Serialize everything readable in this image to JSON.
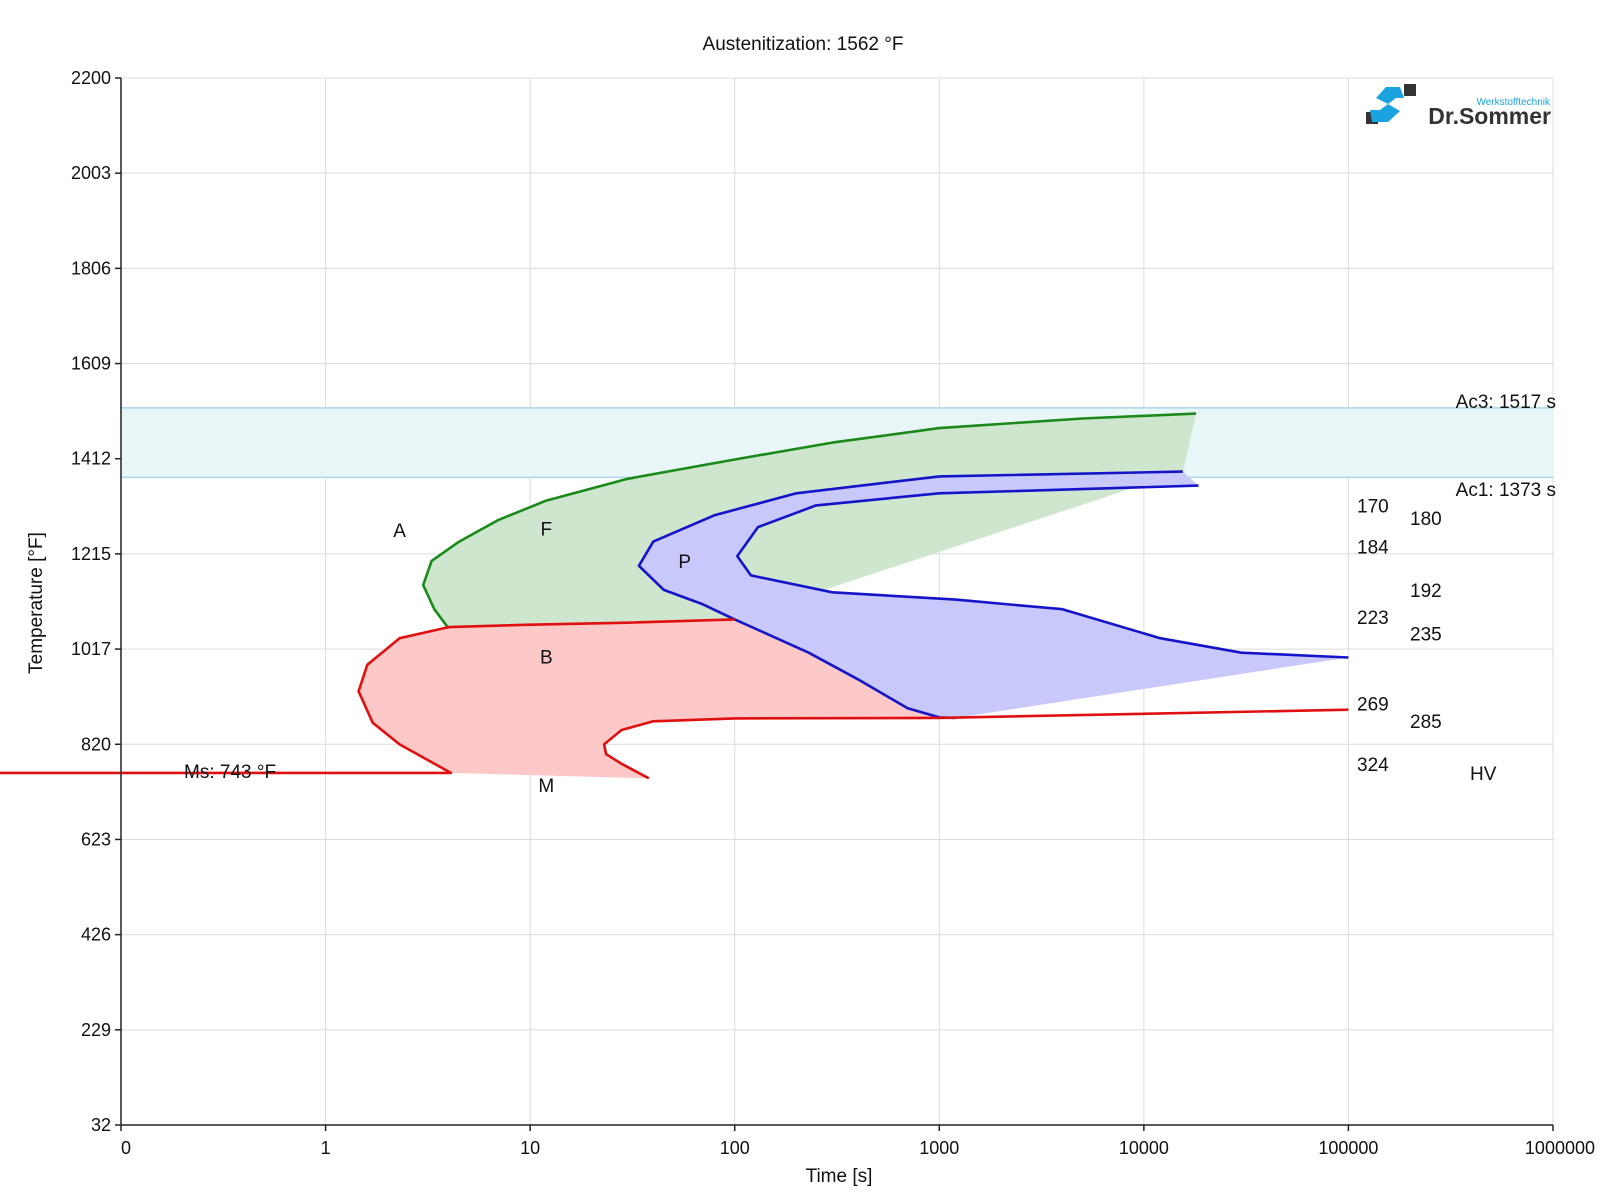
{
  "chart_data": {
    "type": "line",
    "title": "Austenitization: 1562 °F",
    "xlabel": "Time [s]",
    "ylabel": "Temperature [°F]",
    "x_ticks": [
      "0",
      "1",
      "10",
      "100",
      "1000",
      "10000",
      "100000",
      "1000000"
    ],
    "y_ticks": [
      "2200",
      "2003",
      "1806",
      "1609",
      "1412",
      "1215",
      "1017",
      "820",
      "623",
      "426",
      "229",
      "32"
    ],
    "ylim": [
      32,
      2200
    ],
    "x_scale": "log",
    "grid": true,
    "ac_band": {
      "ac3_label": "Ac3: 1517 s",
      "ac1_label": "Ac1: 1373 s",
      "ac3": 1517,
      "ac1": 1373,
      "color": "#e9f6f8"
    },
    "ms_label": "Ms: 743 °F",
    "ms": 743,
    "regions": [
      {
        "label": "A",
        "time": 2.3,
        "temp": 1250
      },
      {
        "label": "F",
        "time": 12,
        "temp": 1253
      },
      {
        "label": "P",
        "time": 57,
        "temp": 1185
      },
      {
        "label": "B",
        "time": 12,
        "temp": 988
      },
      {
        "label": "M",
        "time": 12,
        "temp": 722
      }
    ],
    "hardness_unit": "HV",
    "hardness_values": [
      {
        "label": "170",
        "col": 1,
        "temp": 1300
      },
      {
        "label": "180",
        "col": 2,
        "temp": 1274
      },
      {
        "label": "184",
        "col": 1,
        "temp": 1215
      },
      {
        "label": "192",
        "col": 2,
        "temp": 1125
      },
      {
        "label": "223",
        "col": 1,
        "temp": 1069
      },
      {
        "label": "235",
        "col": 2,
        "temp": 1035
      },
      {
        "label": "269",
        "col": 1,
        "temp": 890
      },
      {
        "label": "285",
        "col": 2,
        "temp": 854
      },
      {
        "label": "324",
        "col": 1,
        "temp": 765
      }
    ],
    "curves": {
      "ferrite": {
        "color": "#1b8a1b",
        "fill": "#cde6cd",
        "points": [
          [
            4.0,
            1060
          ],
          [
            3.4,
            1100
          ],
          [
            3.0,
            1150
          ],
          [
            3.3,
            1200
          ],
          [
            4.5,
            1240
          ],
          [
            7,
            1285
          ],
          [
            12,
            1325
          ],
          [
            30,
            1370
          ],
          [
            100,
            1410
          ],
          [
            300,
            1445
          ],
          [
            1000,
            1475
          ],
          [
            5000,
            1495
          ],
          [
            18000,
            1505
          ]
        ],
        "fill_close": [
          [
            15500,
            1385
          ],
          [
            100,
            1079
          ]
        ]
      },
      "pearlite_start": {
        "color": "#1414c8",
        "points": [
          [
            15500,
            1385
          ],
          [
            1000,
            1375
          ],
          [
            200,
            1340
          ],
          [
            80,
            1295
          ],
          [
            40,
            1240
          ],
          [
            34,
            1190
          ],
          [
            45,
            1140
          ],
          [
            70,
            1110
          ],
          [
            100,
            1079
          ]
        ]
      },
      "pearlite_end": {
        "color": "#1414c8",
        "points": [
          [
            18500,
            1356
          ],
          [
            1000,
            1340
          ],
          [
            250,
            1315
          ],
          [
            130,
            1270
          ],
          [
            103,
            1210
          ],
          [
            120,
            1170
          ],
          [
            300,
            1135
          ],
          [
            1200,
            1120
          ],
          [
            4000,
            1100
          ],
          [
            12000,
            1040
          ],
          [
            30000,
            1010
          ],
          [
            100000,
            1000
          ]
        ]
      },
      "pearlite_fill": {
        "fill": "#c8c8fa",
        "points": [
          [
            15500,
            1385
          ],
          [
            18500,
            1356
          ],
          [
            1000,
            1340
          ],
          [
            250,
            1315
          ],
          [
            130,
            1270
          ],
          [
            103,
            1210
          ],
          [
            120,
            1170
          ],
          [
            300,
            1135
          ],
          [
            1200,
            1120
          ],
          [
            4000,
            1100
          ],
          [
            12000,
            1040
          ],
          [
            30000,
            1010
          ],
          [
            100000,
            1000
          ],
          [
            1200,
            875
          ],
          [
            1000,
            876
          ],
          [
            700,
            895
          ],
          [
            400,
            955
          ],
          [
            230,
            1010
          ],
          [
            100,
            1079
          ],
          [
            70,
            1110
          ],
          [
            45,
            1140
          ],
          [
            34,
            1190
          ],
          [
            40,
            1240
          ],
          [
            80,
            1295
          ],
          [
            200,
            1340
          ],
          [
            1000,
            1375
          ]
        ]
      },
      "pearlite_lower": {
        "color": "#1414c8",
        "points": [
          [
            100,
            1079
          ],
          [
            230,
            1010
          ],
          [
            400,
            955
          ],
          [
            700,
            895
          ],
          [
            1000,
            876
          ],
          [
            1200,
            875
          ]
        ]
      },
      "bainite_start": {
        "color": "#e01010",
        "points": [
          [
            100,
            1079
          ],
          [
            30,
            1072
          ],
          [
            10,
            1068
          ],
          [
            4.0,
            1063
          ],
          [
            2.3,
            1040
          ],
          [
            1.6,
            985
          ],
          [
            1.45,
            930
          ],
          [
            1.7,
            865
          ],
          [
            2.3,
            820
          ],
          [
            4.1,
            761
          ],
          [
            0.01,
            761
          ]
        ]
      },
      "bainite_end": {
        "color": "#e01010",
        "points": [
          [
            100000,
            892
          ],
          [
            1000,
            875
          ],
          [
            100,
            874
          ],
          [
            40,
            868
          ],
          [
            28,
            850
          ],
          [
            23,
            820
          ],
          [
            23.5,
            800
          ],
          [
            28,
            780
          ],
          [
            38,
            750
          ]
        ]
      },
      "bainite_fill": {
        "fill": "#fcc8c8",
        "points": [
          [
            100,
            1079
          ],
          [
            230,
            1010
          ],
          [
            400,
            955
          ],
          [
            700,
            895
          ],
          [
            1000,
            876
          ],
          [
            100,
            874
          ],
          [
            40,
            868
          ],
          [
            28,
            850
          ],
          [
            23,
            820
          ],
          [
            23.5,
            800
          ],
          [
            28,
            780
          ],
          [
            38,
            750
          ],
          [
            4.1,
            761
          ],
          [
            2.3,
            820
          ],
          [
            1.7,
            865
          ],
          [
            1.45,
            930
          ],
          [
            1.6,
            985
          ],
          [
            2.3,
            1040
          ],
          [
            4.0,
            1063
          ],
          [
            10,
            1068
          ],
          [
            30,
            1072
          ]
        ]
      }
    }
  },
  "logo": {
    "name": "Dr.Sommer",
    "subtitle": "Werkstofftechnik"
  }
}
